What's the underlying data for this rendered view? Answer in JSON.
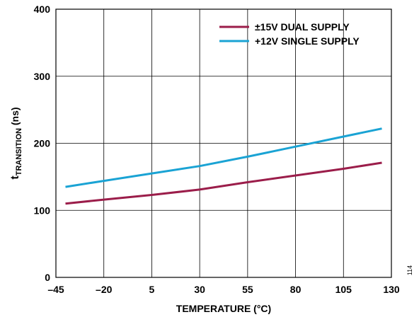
{
  "chart_data": {
    "type": "line",
    "title": "",
    "xlabel": "TEMPERATURE (°C)",
    "ylabel_main": "t",
    "ylabel_sub": "TRANSITION",
    "ylabel_unit": " (ns)",
    "xlim": [
      -45,
      130
    ],
    "ylim": [
      0,
      400
    ],
    "xticks": [
      -45,
      -20,
      5,
      30,
      55,
      80,
      105,
      130
    ],
    "xtick_labels": [
      "–45",
      "–20",
      "5",
      "30",
      "55",
      "80",
      "105",
      "130"
    ],
    "yticks": [
      0,
      100,
      200,
      300,
      400
    ],
    "ytick_labels": [
      "0",
      "100",
      "200",
      "300",
      "400"
    ],
    "grid": true,
    "legend_position": "top-right",
    "series": [
      {
        "name": "±15V DUAL SUPPLY",
        "color": "#9b1d4a",
        "x": [
          -40,
          -20,
          5,
          30,
          55,
          80,
          105,
          125
        ],
        "y": [
          110,
          116,
          123,
          131,
          142,
          152,
          162,
          171
        ]
      },
      {
        "name": "+12V SINGLE SUPPLY",
        "color": "#1aa3d4",
        "x": [
          -40,
          -20,
          5,
          30,
          55,
          80,
          105,
          125
        ],
        "y": [
          135,
          144,
          155,
          166,
          180,
          195,
          210,
          222
        ]
      }
    ]
  },
  "figure_id": "114"
}
